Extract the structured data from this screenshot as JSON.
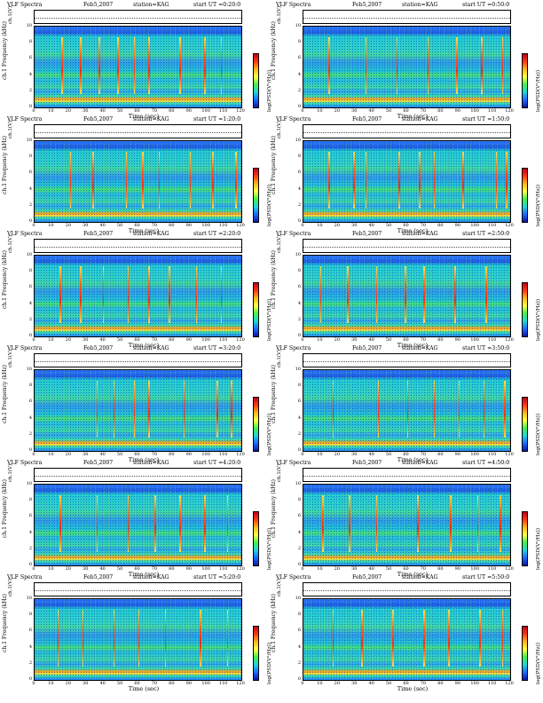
{
  "panels": [
    {
      "title": "VLF Spectra",
      "date": "Feb5,2007",
      "station": "station=KAG",
      "start": "start  UT =0:20:0"
    },
    {
      "title": "VLF Spectra",
      "date": "Feb5,2007",
      "station": "station=KAG",
      "start": "start  UT =0:50:0"
    },
    {
      "title": "VLF Spectra",
      "date": "Feb5,2007",
      "station": "station=KAG",
      "start": "start  UT =1:20:0"
    },
    {
      "title": "VLF Spectra",
      "date": "Feb5,2007",
      "station": "station=KAG",
      "start": "start  UT =1:50:0"
    },
    {
      "title": "VLF Spectra",
      "date": "Feb5,2007",
      "station": "station=KAG",
      "start": "start  UT =2:20:0"
    },
    {
      "title": "VLF Spectra",
      "date": "Feb5,2007",
      "station": "station=KAG",
      "start": "start  UT =2:50:0"
    },
    {
      "title": "VLF Spectra",
      "date": "Feb5,2007",
      "station": "station=KAG",
      "start": "start  UT =3:20:0"
    },
    {
      "title": "VLF Spectra",
      "date": "Feb5,2007",
      "station": "station=KAG",
      "start": "start  UT =3:50:0"
    },
    {
      "title": "VLF Spectra",
      "date": "Feb5,2007",
      "station": "station=KAG",
      "start": "start  UT =4:20:0"
    },
    {
      "title": "VLF Spectra",
      "date": "Feb5,2007",
      "station": "station=KAG",
      "start": "start  UT =4:50:0"
    },
    {
      "title": "VLF Spectra",
      "date": "Feb5,2007",
      "station": "station=KAG",
      "start": "start  UT =5:20:0"
    },
    {
      "title": "VLF Spectra",
      "date": "Feb5,2007",
      "station": "station=KAG",
      "start": "start  UT =5:50:0"
    }
  ],
  "chart_data": {
    "type": "heatmap",
    "xlabel": "Time (sec)",
    "ylabel": "Frequency (kHz)",
    "strip_label": "ch.1",
    "strip_ylabel": "ch.1(V)",
    "colorbar_label": "log(PSD(V²/Hz))",
    "x_ticks": [
      0,
      10,
      20,
      30,
      40,
      50,
      60,
      70,
      80,
      90,
      100,
      110,
      120
    ],
    "y_ticks": [
      0,
      2,
      4,
      6,
      8,
      10
    ],
    "xlim": [
      0,
      120
    ],
    "ylim": [
      0,
      10
    ]
  }
}
